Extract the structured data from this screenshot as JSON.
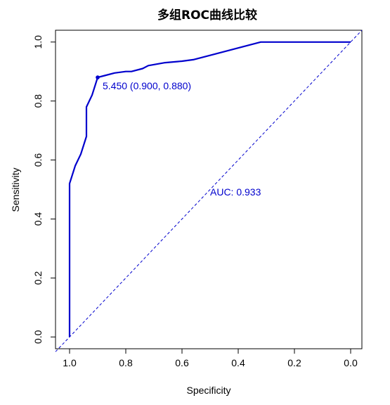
{
  "chart_data": {
    "type": "line",
    "title": "多组ROC曲线比较",
    "xlabel": "Specificity",
    "ylabel": "Sensitivity",
    "xlim": [
      1.05,
      -0.04
    ],
    "ylim": [
      -0.04,
      1.04
    ],
    "x_reversed": true,
    "x_ticks": [
      1.0,
      0.8,
      0.6,
      0.4,
      0.2,
      0.0
    ],
    "x_tick_labels": [
      "1.0",
      "0.8",
      "0.6",
      "0.4",
      "0.2",
      "0.0"
    ],
    "y_ticks": [
      0.0,
      0.2,
      0.4,
      0.6,
      0.8,
      1.0
    ],
    "y_tick_labels": [
      "0.0",
      "0.2",
      "0.4",
      "0.6",
      "0.8",
      "1.0"
    ],
    "grid": false,
    "line_color": "#0000cd",
    "diagonal_color": "#0000cd",
    "series": [
      {
        "specificity": [
          1.0,
          1.0,
          0.98,
          0.96,
          0.94,
          0.94,
          0.92,
          0.9,
          0.88,
          0.84,
          0.8,
          0.78,
          0.74,
          0.72,
          0.66,
          0.6,
          0.56,
          0.5,
          0.4,
          0.32,
          0.2,
          0.1,
          0.0
        ],
        "sensitivity": [
          0.0,
          0.52,
          0.58,
          0.62,
          0.68,
          0.78,
          0.82,
          0.88,
          0.885,
          0.895,
          0.9,
          0.9,
          0.91,
          0.92,
          0.93,
          0.935,
          0.94,
          0.955,
          0.98,
          1.0,
          1.0,
          1.0,
          1.0
        ]
      }
    ],
    "diagonal": {
      "from": [
        1.0,
        0.0
      ],
      "to": [
        0.0,
        1.0
      ]
    },
    "best_threshold": {
      "threshold": 5.45,
      "specificity": 0.9,
      "sensitivity": 0.88,
      "label": "5.450 (0.900, 0.880)"
    },
    "auc_label": "AUC: 0.933",
    "auc_position": {
      "specificity": 0.5,
      "sensitivity": 0.48
    }
  }
}
